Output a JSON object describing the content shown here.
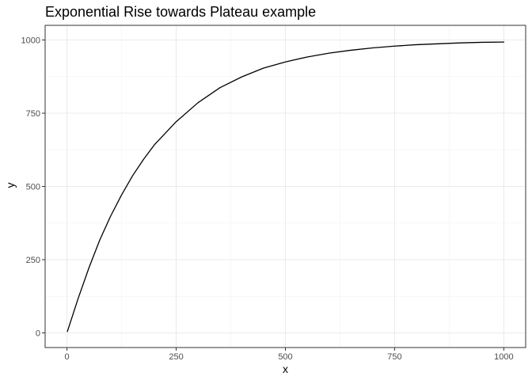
{
  "chart_data": {
    "type": "line",
    "title": "Exponential Rise towards Plateau example",
    "xlabel": "x",
    "ylabel": "y",
    "xlim": [
      -50,
      1050
    ],
    "ylim": [
      -50,
      1050
    ],
    "x_ticks": [
      0,
      250,
      500,
      750,
      1000
    ],
    "y_ticks": [
      0,
      250,
      500,
      750,
      1000
    ],
    "x_tick_labels": [
      "0",
      "250",
      "500",
      "750",
      "1000"
    ],
    "y_tick_labels": [
      "0",
      "250",
      "500",
      "750",
      "1000"
    ],
    "grid": true,
    "legend": "none",
    "series": [
      {
        "color": "#000000",
        "x": [
          1,
          25,
          50,
          75,
          100,
          125,
          150,
          175,
          200,
          250,
          300,
          350,
          400,
          450,
          500,
          550,
          600,
          650,
          700,
          750,
          800,
          850,
          900,
          950,
          1000
        ],
        "y": [
          5,
          115,
          221,
          317,
          399,
          471,
          536,
          592,
          642,
          721,
          786,
          837,
          874,
          904,
          925,
          942,
          955,
          965,
          973,
          979,
          984,
          987,
          990,
          992,
          993
        ]
      }
    ]
  }
}
